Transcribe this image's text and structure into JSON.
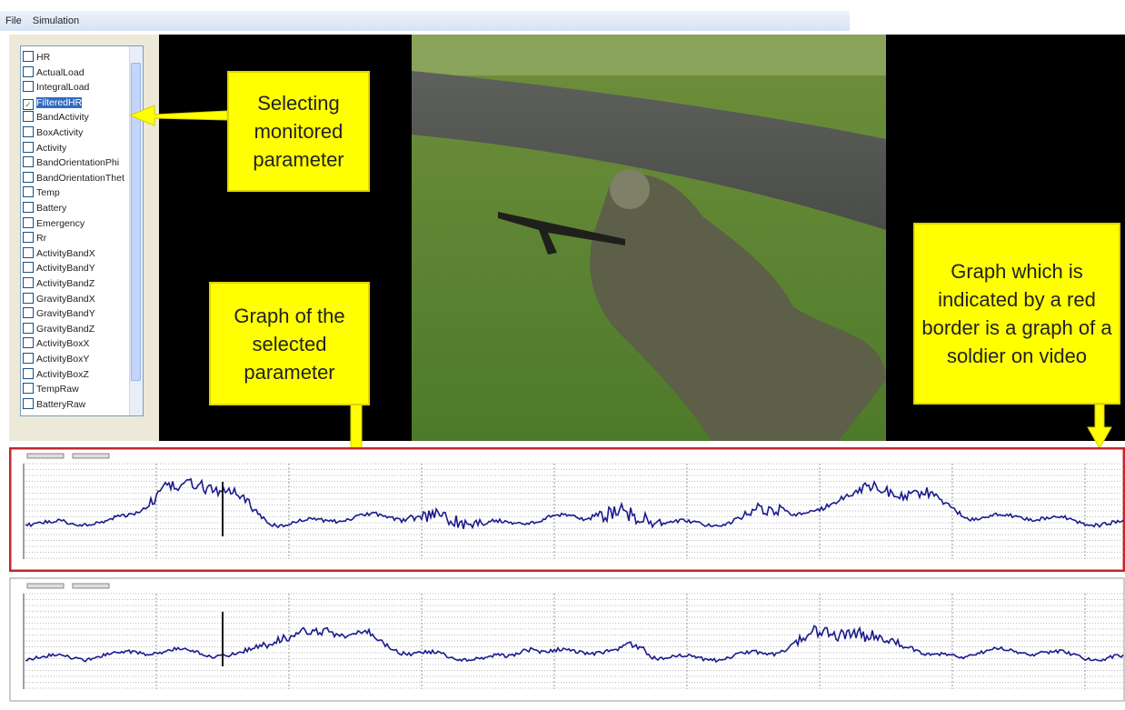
{
  "menu": [
    "File",
    "Simulation"
  ],
  "parameters": [
    {
      "label": "HR",
      "checked": false
    },
    {
      "label": "ActualLoad",
      "checked": false
    },
    {
      "label": "IntegralLoad",
      "checked": false
    },
    {
      "label": "FilteredHR",
      "checked": true
    },
    {
      "label": "BandActivity",
      "checked": false
    },
    {
      "label": "BoxActivity",
      "checked": false
    },
    {
      "label": "Activity",
      "checked": false
    },
    {
      "label": "BandOrientationPhi",
      "checked": false
    },
    {
      "label": "BandOrientationThet",
      "checked": false
    },
    {
      "label": "Temp",
      "checked": false
    },
    {
      "label": "Battery",
      "checked": false
    },
    {
      "label": "Emergency",
      "checked": false
    },
    {
      "label": "Rr",
      "checked": false
    },
    {
      "label": "ActivityBandX",
      "checked": false
    },
    {
      "label": "ActivityBandY",
      "checked": false
    },
    {
      "label": "ActivityBandZ",
      "checked": false
    },
    {
      "label": "GravityBandX",
      "checked": false
    },
    {
      "label": "GravityBandY",
      "checked": false
    },
    {
      "label": "GravityBandZ",
      "checked": false
    },
    {
      "label": "ActivityBoxX",
      "checked": false
    },
    {
      "label": "ActivityBoxY",
      "checked": false
    },
    {
      "label": "ActivityBoxZ",
      "checked": false
    },
    {
      "label": "TempRaw",
      "checked": false
    },
    {
      "label": "BatteryRaw",
      "checked": false
    }
  ],
  "callouts": [
    {
      "text": "Selecting monitored parameter"
    },
    {
      "text": "Graph of the selected parameter"
    },
    {
      "text": "Graph which is indicated by a red border is a graph of a soldier on video"
    }
  ]
}
